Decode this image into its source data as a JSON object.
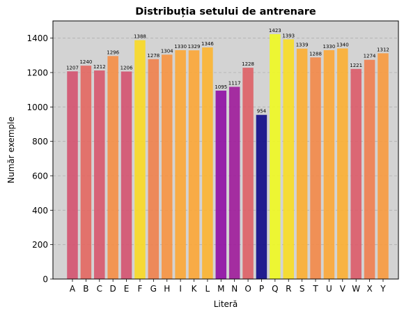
{
  "chart_data": {
    "type": "bar",
    "title": "Distribuția setului de antrenare",
    "xlabel": "Literă",
    "ylabel": "Număr exemple",
    "categories": [
      "A",
      "B",
      "C",
      "D",
      "E",
      "F",
      "G",
      "H",
      "I",
      "K",
      "L",
      "M",
      "N",
      "O",
      "P",
      "Q",
      "R",
      "S",
      "T",
      "U",
      "V",
      "W",
      "X",
      "Y"
    ],
    "values": [
      1207,
      1240,
      1212,
      1296,
      1206,
      1388,
      1278,
      1304,
      1330,
      1329,
      1346,
      1095,
      1117,
      1228,
      954,
      1423,
      1393,
      1339,
      1288,
      1330,
      1340,
      1221,
      1274,
      1312
    ],
    "ylim": [
      0,
      1500
    ],
    "yticks": [
      0,
      200,
      400,
      600,
      800,
      1000,
      1200,
      1400
    ],
    "grid": "y-dashed",
    "background_color": "#d3d3d3",
    "colormap": "plasma"
  }
}
